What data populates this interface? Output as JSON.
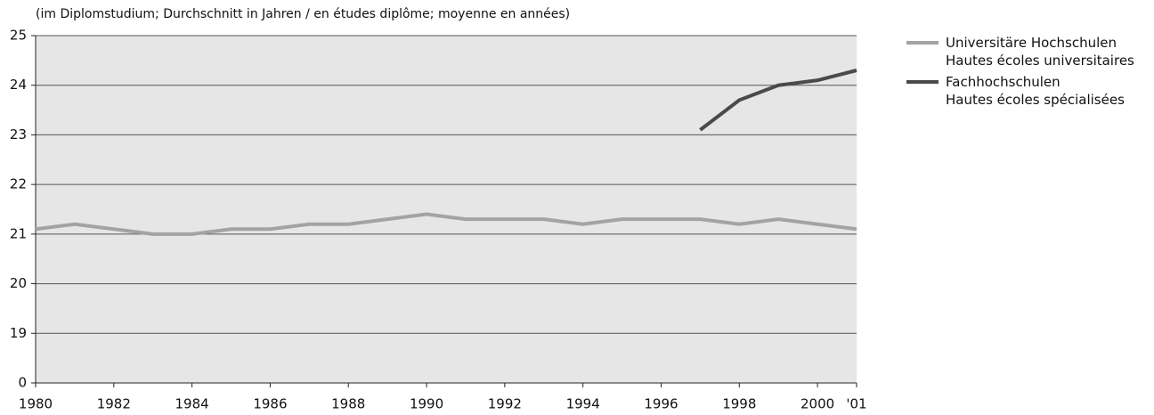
{
  "chart_data": {
    "type": "line",
    "subtitle": "(im Diplomstudium; Durchschnitt in Jahren / en études diplôme; moyenne en années)",
    "x": [
      1980,
      1981,
      1982,
      1983,
      1984,
      1985,
      1986,
      1987,
      1988,
      1989,
      1990,
      1991,
      1992,
      1993,
      1994,
      1995,
      1996,
      1997,
      1998,
      1999,
      2000,
      2001
    ],
    "xlim": [
      1980,
      2001
    ],
    "xticks": [
      1980,
      1982,
      1984,
      1986,
      1988,
      1990,
      1992,
      1994,
      1996,
      1998,
      2000,
      {
        "value": 2001,
        "label": "'01"
      }
    ],
    "ylim": [
      19,
      25
    ],
    "yticks": [
      0,
      19,
      20,
      21,
      22,
      23,
      24,
      25
    ],
    "axis_break": true,
    "grid": true,
    "legend": "right",
    "series": [
      {
        "name": "Universitäre Hochschulen\nHautes écoles universitaires",
        "color": "#a3a3a3",
        "values": [
          21.1,
          21.2,
          21.1,
          21.0,
          21.0,
          21.1,
          21.1,
          21.2,
          21.2,
          21.3,
          21.4,
          21.3,
          21.3,
          21.3,
          21.2,
          21.3,
          21.3,
          21.3,
          21.2,
          21.3,
          21.2,
          21.1
        ]
      },
      {
        "name": "Fachhochschulen\nHautes écoles spécialisées",
        "color": "#4a4a4a",
        "values": [
          null,
          null,
          null,
          null,
          null,
          null,
          null,
          null,
          null,
          null,
          null,
          null,
          null,
          null,
          null,
          null,
          null,
          23.1,
          23.7,
          24.0,
          24.1,
          24.3
        ]
      }
    ]
  }
}
